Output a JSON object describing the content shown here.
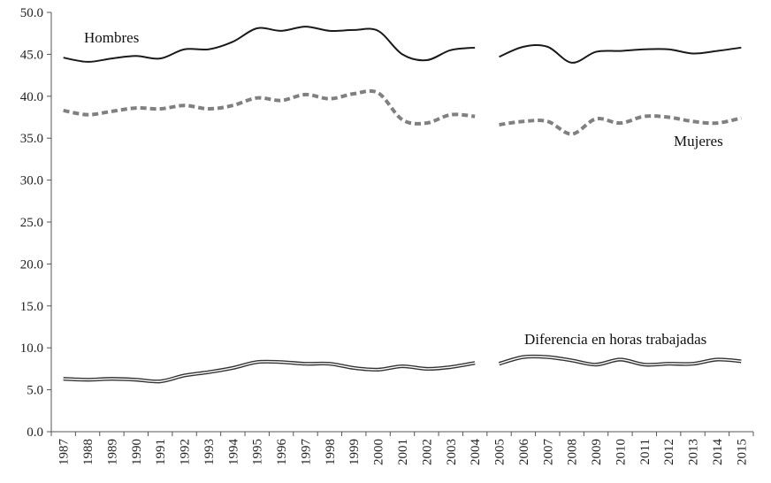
{
  "chart_data": {
    "type": "line",
    "title": "",
    "xlabel": "",
    "ylabel": "",
    "ylim": [
      0,
      50
    ],
    "yticks": [
      "0.0",
      "5.0",
      "10.0",
      "15.0",
      "20.0",
      "25.0",
      "30.0",
      "35.0",
      "40.0",
      "45.0",
      "50.0"
    ],
    "x": [
      1987,
      1988,
      1989,
      1990,
      1991,
      1992,
      1993,
      1994,
      1995,
      1996,
      1997,
      1998,
      1999,
      2000,
      2001,
      2002,
      2003,
      2004,
      2005,
      2006,
      2007,
      2008,
      2009,
      2010,
      2011,
      2012,
      2013,
      2014,
      2015
    ],
    "break_after": 2004,
    "series": [
      {
        "name": "Hombres",
        "style": "solid",
        "color": "#1a1a1a",
        "values": [
          44.6,
          44.1,
          44.5,
          44.8,
          44.5,
          45.6,
          45.6,
          46.5,
          48.1,
          47.8,
          48.3,
          47.8,
          47.9,
          47.8,
          45.0,
          44.3,
          45.5,
          45.8,
          44.7,
          45.9,
          45.9,
          44.0,
          45.3,
          45.4,
          45.6,
          45.6,
          45.1,
          45.4,
          45.8
        ]
      },
      {
        "name": "Mujeres",
        "style": "dashed",
        "color": "#808080",
        "values": [
          38.3,
          37.8,
          38.2,
          38.6,
          38.5,
          38.9,
          38.5,
          38.9,
          39.8,
          39.5,
          40.2,
          39.7,
          40.3,
          40.4,
          37.2,
          36.8,
          37.8,
          37.6,
          36.6,
          37.0,
          37.0,
          35.5,
          37.3,
          36.8,
          37.6,
          37.5,
          37.0,
          36.8,
          37.4
        ]
      },
      {
        "name": "Diferencia en horas trabajadas",
        "style": "double",
        "color": "#333333",
        "values": [
          6.3,
          6.2,
          6.3,
          6.2,
          6.0,
          6.7,
          7.1,
          7.6,
          8.3,
          8.3,
          8.1,
          8.1,
          7.6,
          7.4,
          7.8,
          7.5,
          7.7,
          8.2,
          8.1,
          8.9,
          8.9,
          8.5,
          8.0,
          8.6,
          8.0,
          8.1,
          8.1,
          8.6,
          8.4
        ]
      }
    ]
  }
}
